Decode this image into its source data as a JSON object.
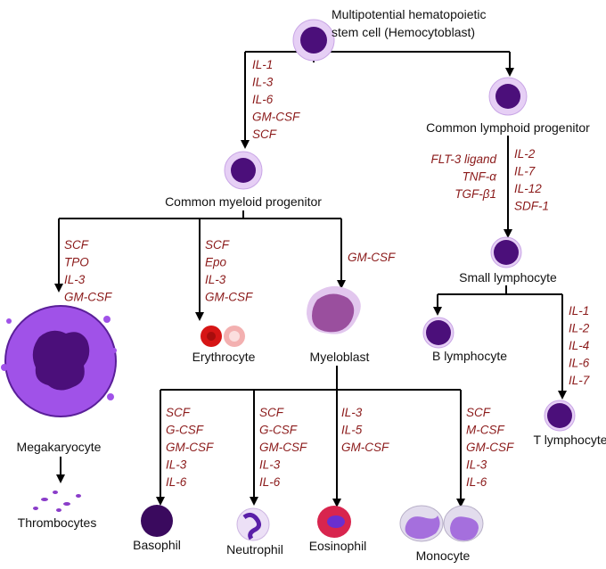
{
  "cells": {
    "hsc": [
      "Multipotential hematopoietic",
      "stem cell  (Hemocytoblast)"
    ],
    "myeloid": "Common myeloid progenitor",
    "lymphoid": "Common lymphoid progenitor",
    "small_lymphocyte": "Small lymphocyte",
    "b_lymphocyte": "B lymphocyte",
    "t_lymphocyte": "T lymphocyte",
    "megakaryocyte": "Megakaryocyte",
    "thrombocytes": "Thrombocytes",
    "erythrocyte": "Erythrocyte",
    "myeloblast": "Myeloblast",
    "basophil": "Basophil",
    "neutrophil": "Neutrophil",
    "eosinophil": "Eosinophil",
    "monocyte": "Monocyte"
  },
  "cytokines": {
    "to_myeloid": [
      "IL-1",
      "IL-3",
      "IL-6",
      "GM-CSF",
      "SCF"
    ],
    "to_lymphoid_left": [
      "FLT-3 ligand",
      "TNF-α",
      "TGF-β1"
    ],
    "to_lymphoid_right": [
      "IL-2",
      "IL-7",
      "IL-12",
      "SDF-1"
    ],
    "to_megakaryocyte": [
      "SCF",
      "TPO",
      "IL-3",
      "GM-CSF"
    ],
    "to_erythrocyte": [
      "SCF",
      "Epo",
      "IL-3",
      "GM-CSF"
    ],
    "to_myeloblast": [
      "GM-CSF"
    ],
    "to_t_lymphocyte": [
      "IL-1",
      "IL-2",
      "IL-4",
      "IL-6",
      "IL-7"
    ],
    "to_basophil": [
      "SCF",
      "G-CSF",
      "GM-CSF",
      "IL-3",
      "IL-6"
    ],
    "to_neutrophil": [
      "SCF",
      "G-CSF",
      "GM-CSF",
      "IL-3",
      "IL-6"
    ],
    "to_eosinophil": [
      "IL-3",
      "IL-5",
      "GM-CSF"
    ],
    "to_monocyte": [
      "SCF",
      "M-CSF",
      "GM-CSF",
      "IL-3",
      "IL-6"
    ]
  },
  "colors": {
    "cytokine_text": "#8b1a1a",
    "cell_purple": "#4b0f7a",
    "cell_ring": "#d9b8ee"
  }
}
